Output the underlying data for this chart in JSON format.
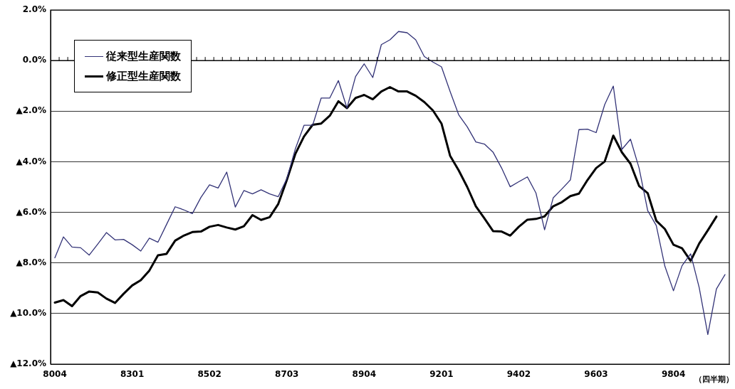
{
  "chart_data": {
    "type": "line",
    "xlabel": "（四半期）",
    "categories": [
      "8004",
      null,
      null,
      null,
      null,
      null,
      null,
      null,
      null,
      "8301",
      null,
      null,
      null,
      null,
      null,
      null,
      null,
      null,
      "8502",
      null,
      null,
      null,
      null,
      null,
      null,
      null,
      null,
      "8703",
      null,
      null,
      null,
      null,
      null,
      null,
      null,
      null,
      "8904",
      null,
      null,
      null,
      null,
      null,
      null,
      null,
      null,
      "9201",
      null,
      null,
      null,
      null,
      null,
      null,
      null,
      null,
      "9402",
      null,
      null,
      null,
      null,
      null,
      null,
      null,
      null,
      "9603",
      null,
      null,
      null,
      null,
      null,
      null,
      null,
      null,
      "9804",
      null,
      null,
      null,
      null,
      null,
      null
    ],
    "series": [
      {
        "name": "従来型生産関数",
        "color": "#333377",
        "values": [
          -7.8,
          -6.97,
          -7.37,
          -7.4,
          -7.69,
          -7.25,
          -6.8,
          -7.09,
          -7.07,
          -7.28,
          -7.53,
          -7.02,
          -7.18,
          -6.48,
          -5.78,
          -5.9,
          -6.05,
          -5.41,
          -4.91,
          -5.04,
          -4.41,
          -5.79,
          -5.14,
          -5.27,
          -5.11,
          -5.27,
          -5.38,
          -4.67,
          -3.48,
          -2.56,
          -2.56,
          -1.48,
          -1.48,
          -0.79,
          -1.88,
          -0.63,
          -0.13,
          -0.67,
          0.63,
          0.82,
          1.15,
          1.1,
          0.82,
          0.16,
          -0.06,
          -0.25,
          -1.22,
          -2.14,
          -2.62,
          -3.22,
          -3.3,
          -3.62,
          -4.25,
          -4.99,
          -4.79,
          -4.6,
          -5.24,
          -6.69,
          -5.43,
          -5.08,
          -4.72,
          -2.73,
          -2.71,
          -2.85,
          -1.74,
          -1.01,
          -3.51,
          -3.11,
          -4.25,
          -5.93,
          -6.52,
          -8.13,
          -9.1,
          -8.11,
          -7.64,
          -8.98,
          -10.83,
          -9.03,
          -8.46
        ]
      },
      {
        "name": "修正型生産関数",
        "color": "#000000",
        "values": [
          -9.57,
          -9.47,
          -9.71,
          -9.31,
          -9.13,
          -9.17,
          -9.41,
          -9.58,
          -9.22,
          -8.89,
          -8.68,
          -8.3,
          -7.7,
          -7.64,
          -7.12,
          -6.92,
          -6.78,
          -6.76,
          -6.57,
          -6.5,
          -6.6,
          -6.68,
          -6.55,
          -6.11,
          -6.3,
          -6.19,
          -5.67,
          -4.72,
          -3.68,
          -3.0,
          -2.54,
          -2.49,
          -2.18,
          -1.61,
          -1.88,
          -1.48,
          -1.36,
          -1.53,
          -1.22,
          -1.05,
          -1.22,
          -1.22,
          -1.39,
          -1.64,
          -1.97,
          -2.49,
          -3.76,
          -4.34,
          -5.0,
          -5.76,
          -6.24,
          -6.74,
          -6.76,
          -6.92,
          -6.57,
          -6.29,
          -6.26,
          -6.16,
          -5.76,
          -5.6,
          -5.36,
          -5.26,
          -4.72,
          -4.25,
          -3.99,
          -2.97,
          -3.63,
          -4.08,
          -4.96,
          -5.24,
          -6.33,
          -6.66,
          -7.28,
          -7.42,
          -7.92,
          -7.23,
          -6.71,
          -6.17,
          null
        ]
      }
    ],
    "ylim": [
      -12,
      2
    ],
    "yticks": [
      {
        "value": 2,
        "label": "2.0%"
      },
      {
        "value": 0,
        "label": "0.0%"
      },
      {
        "value": -2,
        "label": "▲2.0%"
      },
      {
        "value": -4,
        "label": "▲4.0%"
      },
      {
        "value": -6,
        "label": "▲6.0%"
      },
      {
        "value": -8,
        "label": "▲8.0%"
      },
      {
        "value": -10,
        "label": "▲10.0%"
      },
      {
        "value": -12,
        "label": "▲12.0%"
      }
    ],
    "grid": "y",
    "legend": "top left",
    "marker": "none",
    "line_style": "solid"
  }
}
